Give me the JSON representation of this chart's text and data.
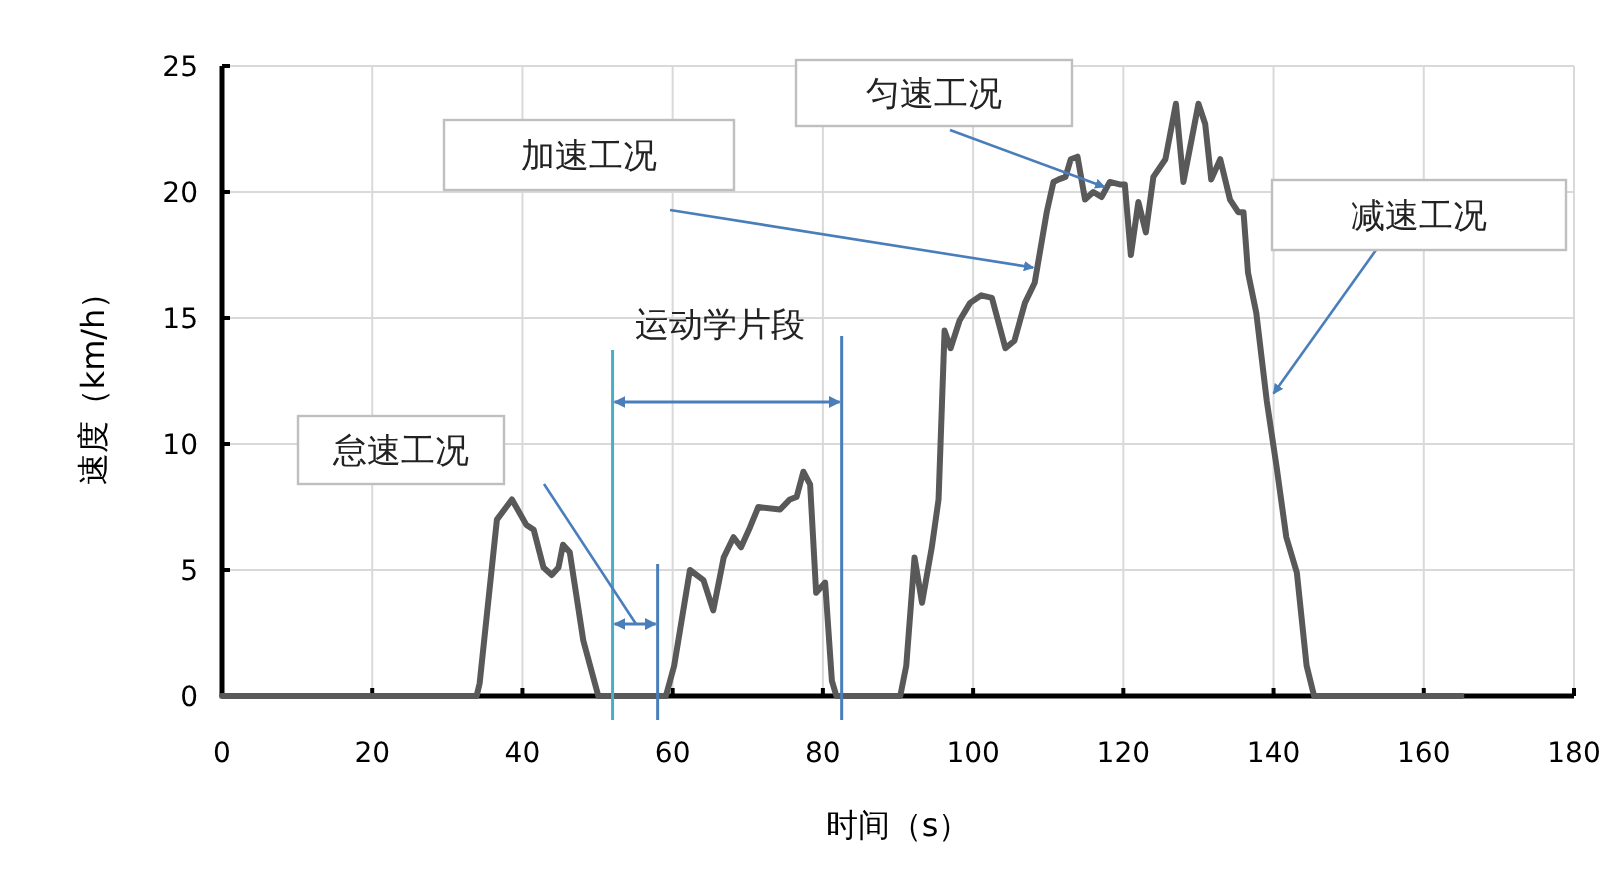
{
  "chart_data": {
    "type": "line",
    "xlabel": "时间（s）",
    "ylabel": "速度（km/h）",
    "xlim": [
      0,
      180
    ],
    "ylim": [
      0,
      25
    ],
    "xticks": [
      0,
      20,
      40,
      60,
      80,
      100,
      120,
      140,
      160,
      180
    ],
    "yticks": [
      0,
      5,
      10,
      15,
      20,
      25
    ],
    "grid": true,
    "marker": "none",
    "line_style": "solid",
    "series": [
      {
        "color": "#595959",
        "x": [
          0,
          33.9,
          34.3,
          36.6,
          38.6,
          40.5,
          41.5,
          42.8,
          43.9,
          44.8,
          45.4,
          46.3,
          48.1,
          50.1,
          59.1,
          60.2,
          62.3,
          64.1,
          65.4,
          66.8,
          68.1,
          69.1,
          70.3,
          71.4,
          74.3,
          75.6,
          76.5,
          77.4,
          78.3,
          79.1,
          80.3,
          81.2,
          81.8,
          90.3,
          91.1,
          92.2,
          93.2,
          94.5,
          95.4,
          96.2,
          97.0,
          98.2,
          99.6,
          101.1,
          102.5,
          104.3,
          105.5,
          106.9,
          108.2,
          109.8,
          110.7,
          111.4,
          112.3,
          113.0,
          113.9,
          114.9,
          116.0,
          117.1,
          118.2,
          119.5,
          120.2,
          121.0,
          122.0,
          123.0,
          124.0,
          125.6,
          127.0,
          128.0,
          129.1,
          130.0,
          130.9,
          131.7,
          132.9,
          134.2,
          135.3,
          136.0,
          136.6,
          137.7,
          139.1,
          140.4,
          141.7,
          143.1,
          144.4,
          145.4,
          165
        ],
        "values": [
          0,
          0,
          0.5,
          7.0,
          7.8,
          6.8,
          6.6,
          5.1,
          4.8,
          5.1,
          6.0,
          5.7,
          2.2,
          0,
          0,
          1.2,
          5.0,
          4.6,
          3.4,
          5.5,
          6.3,
          5.9,
          6.7,
          7.5,
          7.4,
          7.8,
          7.9,
          8.9,
          8.4,
          4.1,
          4.5,
          0.6,
          0,
          0,
          1.2,
          5.5,
          3.7,
          5.9,
          7.8,
          14.5,
          13.8,
          14.9,
          15.6,
          15.9,
          15.8,
          13.8,
          14.1,
          15.6,
          16.4,
          19.2,
          20.4,
          20.5,
          20.6,
          21.3,
          21.4,
          19.7,
          20.0,
          19.8,
          20.4,
          20.3,
          20.3,
          17.5,
          19.6,
          18.4,
          20.6,
          21.3,
          23.5,
          20.4,
          22.1,
          23.5,
          22.7,
          20.5,
          21.3,
          19.7,
          19.2,
          19.2,
          16.8,
          15.2,
          11.7,
          9.1,
          6.3,
          4.9,
          1.2,
          0,
          0
        ]
      }
    ],
    "ref_lines": [
      {
        "axis": "x",
        "value": 52,
        "color": "#4bacc6"
      },
      {
        "axis": "x",
        "value": 58,
        "color": "#4a7ebb"
      },
      {
        "axis": "x",
        "value": 82.5,
        "color": "#4a7ebb"
      }
    ],
    "annotations": [
      "怠速工况",
      "运动学片段",
      {
        "text": "加速工况",
        "x": 108,
        "y": 17
      },
      {
        "text": "匀速工况",
        "x": 117.5,
        "y": 20.2
      },
      {
        "text": "减速工况",
        "x": 140,
        "y": 12
      }
    ]
  }
}
